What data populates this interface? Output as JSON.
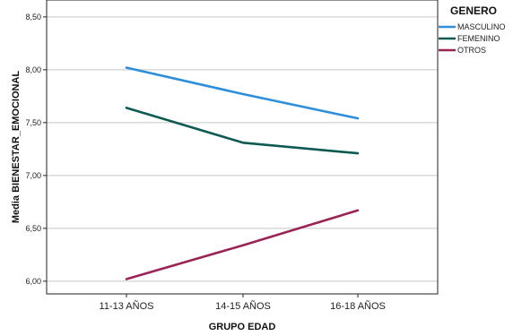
{
  "chart_data": {
    "type": "line",
    "xlabel": "GRUPO EDAD",
    "ylabel": "Media BIENESTAR_EMOCIONAL",
    "categories": [
      "11-13 AÑOS",
      "14-15 AÑOS",
      "16-18 AÑOS"
    ],
    "y_ticks": [
      6.0,
      6.5,
      7.0,
      7.5,
      8.0,
      8.5
    ],
    "y_tick_labels": [
      "6,00",
      "6,50",
      "7,00",
      "7,50",
      "8,00",
      "8,50"
    ],
    "ylim": [
      5.88,
      8.66
    ],
    "grid": "horizontal",
    "legend": {
      "title": "GENERO",
      "placement": "right"
    },
    "series": [
      {
        "name": "MASCULINO",
        "color": "#2d8fdc",
        "values": [
          8.02,
          7.77,
          7.54
        ]
      },
      {
        "name": "FEMENINO",
        "color": "#0e5a52",
        "values": [
          7.64,
          7.31,
          7.21
        ]
      },
      {
        "name": "OTROS",
        "color": "#9a2456",
        "values": [
          6.02,
          6.34,
          6.67
        ]
      }
    ]
  }
}
